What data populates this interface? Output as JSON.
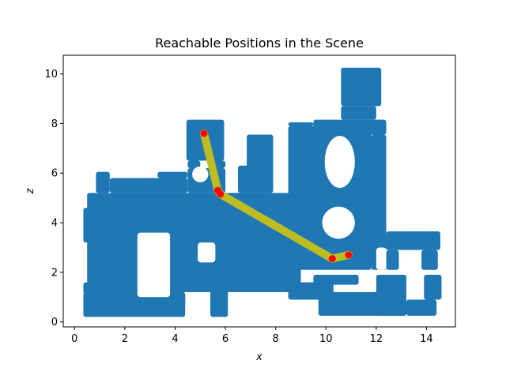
{
  "chart_data": {
    "type": "scatter",
    "title": "Reachable Positions in the Scene",
    "xlabel": "x",
    "ylabel": "z",
    "xlim": [
      -0.45,
      15.15
    ],
    "ylim": [
      -0.2,
      10.75
    ],
    "xticks": [
      0,
      2,
      4,
      6,
      8,
      10,
      12,
      14
    ],
    "yticks": [
      0,
      2,
      4,
      6,
      8,
      10
    ],
    "grid": false,
    "colors": {
      "reachable": "#1f77b4",
      "path": "#bcbd22",
      "waypoint": "#ff0000"
    },
    "reachable_regions": [
      {
        "x0": 0.35,
        "x1": 0.95,
        "y0": 3.2,
        "y1": 4.6
      },
      {
        "x0": 0.35,
        "x1": 0.85,
        "y0": 1.15,
        "y1": 1.6
      },
      {
        "x0": 0.35,
        "x1": 4.4,
        "y0": 0.2,
        "y1": 1.2
      },
      {
        "x0": 0.5,
        "x1": 9.0,
        "y0": 1.2,
        "y1": 5.2
      },
      {
        "x0": 0.85,
        "x1": 1.4,
        "y0": 5.2,
        "y1": 6.05
      },
      {
        "x0": 1.4,
        "x1": 4.5,
        "y0": 5.2,
        "y1": 5.8
      },
      {
        "x0": 3.3,
        "x1": 4.5,
        "y0": 5.8,
        "y1": 6.05
      },
      {
        "x0": 4.5,
        "x1": 6.0,
        "y0": 5.2,
        "y1": 6.2
      },
      {
        "x0": 4.5,
        "x1": 5.0,
        "y0": 6.2,
        "y1": 6.5
      },
      {
        "x0": 5.5,
        "x1": 6.0,
        "y0": 6.2,
        "y1": 6.5
      },
      {
        "x0": 4.45,
        "x1": 5.95,
        "y0": 6.5,
        "y1": 8.15
      },
      {
        "x0": 6.5,
        "x1": 7.0,
        "y0": 5.2,
        "y1": 6.3
      },
      {
        "x0": 6.85,
        "x1": 7.9,
        "y0": 5.2,
        "y1": 7.55
      },
      {
        "x0": 3.9,
        "x1": 4.4,
        "y0": 0.6,
        "y1": 1.2
      },
      {
        "x0": 5.4,
        "x1": 6.1,
        "y0": 0.2,
        "y1": 1.3
      },
      {
        "x0": 6.2,
        "x1": 7.5,
        "y0": 1.9,
        "y1": 2.3
      },
      {
        "x0": 8.2,
        "x1": 9.0,
        "y0": 1.3,
        "y1": 2.9
      },
      {
        "x0": 8.5,
        "x1": 11.8,
        "y0": 2.1,
        "y1": 7.9
      },
      {
        "x0": 8.5,
        "x1": 9.5,
        "y0": 7.9,
        "y1": 8.05
      },
      {
        "x0": 9.5,
        "x1": 12.4,
        "y0": 7.55,
        "y1": 8.15
      },
      {
        "x0": 11.8,
        "x1": 12.4,
        "y0": 2.1,
        "y1": 7.55
      },
      {
        "x0": 12.4,
        "x1": 14.55,
        "y0": 2.9,
        "y1": 3.65
      },
      {
        "x0": 12.4,
        "x1": 12.9,
        "y0": 2.1,
        "y1": 2.9
      },
      {
        "x0": 13.8,
        "x1": 14.45,
        "y0": 2.1,
        "y1": 2.9
      },
      {
        "x0": 10.6,
        "x1": 12.0,
        "y0": 8.15,
        "y1": 8.7
      },
      {
        "x0": 10.6,
        "x1": 12.2,
        "y0": 8.7,
        "y1": 10.25
      },
      {
        "x0": 8.5,
        "x1": 10.3,
        "y0": 0.9,
        "y1": 1.6
      },
      {
        "x0": 9.5,
        "x1": 11.3,
        "y0": 1.5,
        "y1": 1.9
      },
      {
        "x0": 9.7,
        "x1": 13.2,
        "y0": 0.25,
        "y1": 1.2
      },
      {
        "x0": 12.0,
        "x1": 13.2,
        "y0": 0.25,
        "y1": 1.9
      },
      {
        "x0": 13.2,
        "x1": 14.4,
        "y0": 0.25,
        "y1": 0.9
      },
      {
        "x0": 13.9,
        "x1": 14.6,
        "y0": 0.9,
        "y1": 1.9
      }
    ],
    "obstacles": [
      {
        "type": "rect",
        "x0": 2.5,
        "x1": 3.8,
        "y0": 1.0,
        "y1": 3.6
      },
      {
        "type": "rect",
        "x0": 4.9,
        "x1": 5.6,
        "y0": 2.4,
        "y1": 3.2
      },
      {
        "type": "ellipse",
        "cx": 5.0,
        "cy": 5.95,
        "rx": 0.32,
        "ry": 0.32
      },
      {
        "type": "ellipse",
        "cx": 10.55,
        "cy": 6.45,
        "rx": 0.6,
        "ry": 1.05
      },
      {
        "type": "ellipse",
        "cx": 10.5,
        "cy": 4.0,
        "rx": 0.65,
        "ry": 0.65
      },
      {
        "type": "rect",
        "x0": 12.0,
        "x1": 12.4,
        "y0": 2.1,
        "y1": 3.0
      }
    ],
    "path": {
      "x": [
        5.15,
        5.7,
        5.8,
        10.25,
        10.9
      ],
      "y": [
        7.6,
        5.3,
        5.15,
        2.55,
        2.7
      ]
    }
  }
}
